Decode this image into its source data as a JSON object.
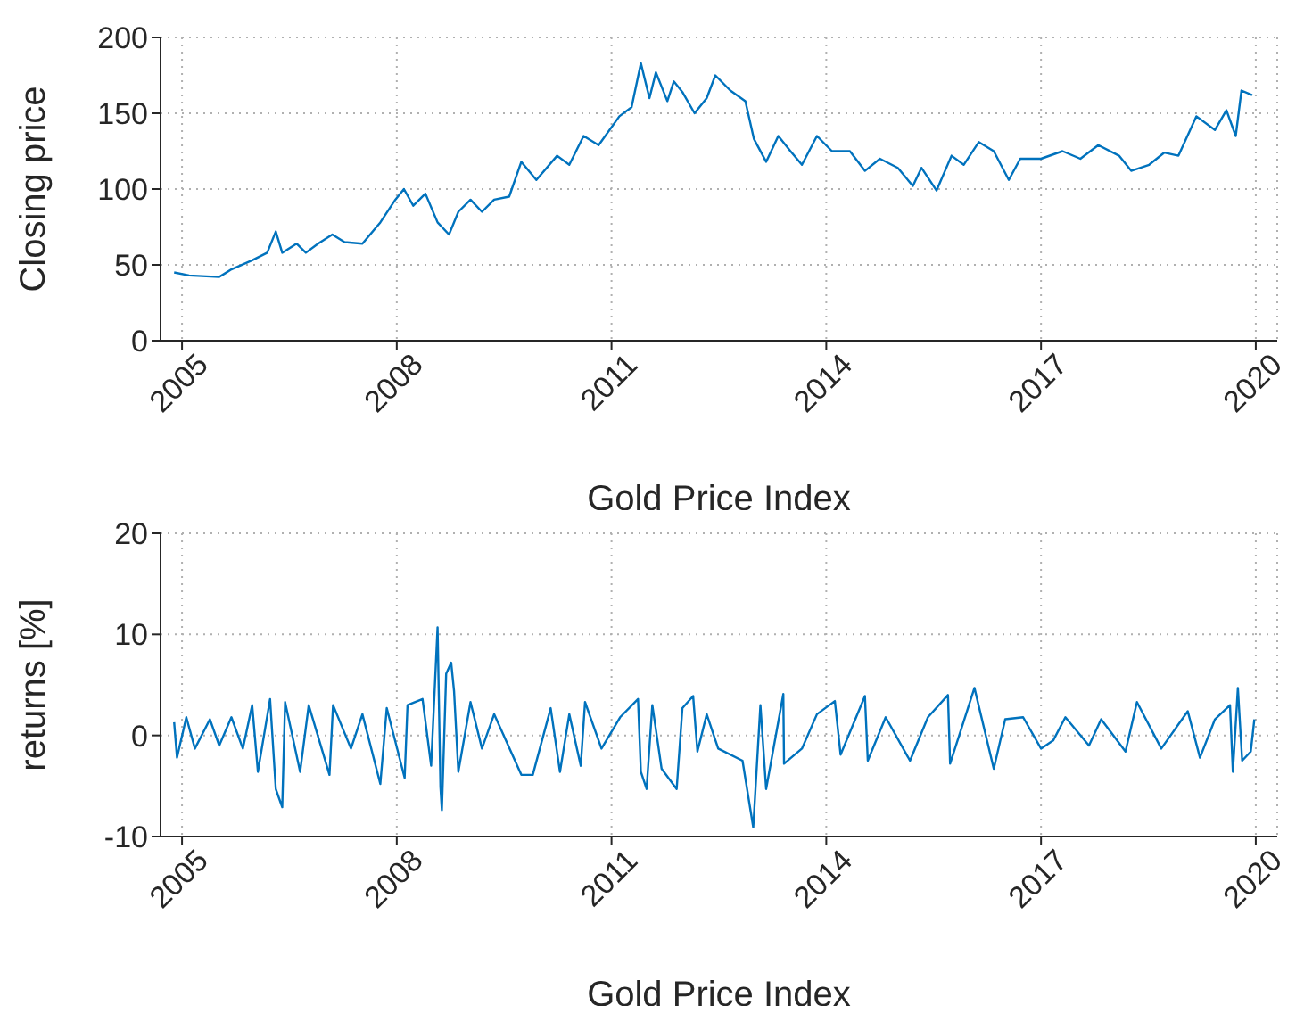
{
  "chart_data": [
    {
      "type": "line",
      "xlabel": "Gold Price Index",
      "ylabel": "Closing price",
      "xlim": [
        2004.7,
        2020.3
      ],
      "xticks": [
        2005,
        2008,
        2011,
        2014,
        2017,
        2020
      ],
      "ylim": [
        0,
        200
      ],
      "yticks": [
        0,
        50,
        100,
        150,
        200
      ],
      "grid": true,
      "marker": "none",
      "line_style": "solid",
      "x": [
        2004.89,
        2005.1,
        2005.52,
        2005.69,
        2005.98,
        2006.19,
        2006.31,
        2006.4,
        2006.6,
        2006.73,
        2006.9,
        2007.1,
        2007.27,
        2007.52,
        2007.77,
        2007.98,
        2008.1,
        2008.23,
        2008.4,
        2008.57,
        2008.73,
        2008.86,
        2009.03,
        2009.19,
        2009.36,
        2009.57,
        2009.74,
        2009.95,
        2010.24,
        2010.41,
        2010.61,
        2010.82,
        2011.11,
        2011.28,
        2011.41,
        2011.53,
        2011.62,
        2011.78,
        2011.87,
        2011.99,
        2012.16,
        2012.33,
        2012.45,
        2012.66,
        2012.87,
        2012.99,
        2013.16,
        2013.33,
        2013.5,
        2013.66,
        2013.87,
        2014.08,
        2014.33,
        2014.54,
        2014.75,
        2015.0,
        2015.21,
        2015.33,
        2015.54,
        2015.75,
        2015.92,
        2016.13,
        2016.34,
        2016.55,
        2016.71,
        2017.0,
        2017.3,
        2017.55,
        2017.8,
        2018.09,
        2018.26,
        2018.51,
        2018.72,
        2018.92,
        2019.17,
        2019.43,
        2019.59,
        2019.72,
        2019.8,
        2019.95
      ],
      "series": [
        {
          "color": "#0072bd",
          "values": [
            45,
            43,
            42,
            47,
            53,
            58,
            72,
            58,
            64,
            58,
            64,
            70,
            65,
            64,
            78,
            93,
            100,
            89,
            97,
            78,
            70,
            85,
            93,
            85,
            93,
            95,
            118,
            106,
            122,
            116,
            135,
            129,
            148,
            154,
            183,
            160,
            177,
            158,
            171,
            164,
            150,
            160,
            175,
            165,
            158,
            133,
            118,
            135,
            125,
            116,
            135,
            125,
            125,
            112,
            120,
            114,
            102,
            114,
            99,
            122,
            116,
            131,
            125,
            106,
            120,
            120,
            125,
            120,
            129,
            122,
            112,
            116,
            124,
            122,
            148,
            139,
            152,
            135,
            165,
            162
          ]
        }
      ]
    },
    {
      "type": "line",
      "xlabel": "Gold Price Index",
      "ylabel": "returns [%]",
      "xlim": [
        2004.7,
        2020.3
      ],
      "xticks": [
        2005,
        2008,
        2011,
        2014,
        2017,
        2020
      ],
      "ylim": [
        -10,
        20
      ],
      "yticks": [
        -10,
        0,
        10,
        20
      ],
      "grid": true,
      "marker": "none",
      "line_style": "solid",
      "x": [
        2004.89,
        2004.93,
        2005.06,
        2005.18,
        2005.39,
        2005.52,
        2005.69,
        2005.85,
        2005.98,
        2006.06,
        2006.23,
        2006.31,
        2006.4,
        2006.44,
        2006.65,
        2006.77,
        2007.06,
        2007.11,
        2007.36,
        2007.52,
        2007.77,
        2007.86,
        2008.11,
        2008.15,
        2008.36,
        2008.48,
        2008.57,
        2008.61,
        2008.63,
        2008.69,
        2008.76,
        2008.8,
        2008.86,
        2009.03,
        2009.19,
        2009.36,
        2009.74,
        2009.9,
        2010.15,
        2010.28,
        2010.41,
        2010.57,
        2010.63,
        2010.86,
        2011.12,
        2011.37,
        2011.41,
        2011.49,
        2011.57,
        2011.7,
        2011.91,
        2011.99,
        2012.14,
        2012.2,
        2012.33,
        2012.49,
        2012.83,
        2012.98,
        2013.08,
        2013.16,
        2013.4,
        2013.41,
        2013.66,
        2013.87,
        2014.12,
        2014.2,
        2014.54,
        2014.58,
        2014.83,
        2015.17,
        2015.42,
        2015.7,
        2015.73,
        2016.07,
        2016.34,
        2016.5,
        2016.75,
        2017.0,
        2017.17,
        2017.34,
        2017.67,
        2017.84,
        2018.18,
        2018.34,
        2018.68,
        2019.05,
        2019.22,
        2019.43,
        2019.64,
        2019.68,
        2019.75,
        2019.81,
        2019.93,
        2019.98
      ],
      "series": [
        {
          "color": "#0072bd",
          "values": [
            1.3,
            -2.2,
            1.8,
            -1.3,
            1.6,
            -1.0,
            1.8,
            -1.3,
            3.0,
            -3.6,
            3.6,
            -5.3,
            -7.1,
            3.3,
            -3.6,
            3.0,
            -3.9,
            3.0,
            -1.3,
            2.1,
            -4.8,
            2.7,
            -4.2,
            3.0,
            3.6,
            -3.0,
            10.7,
            -5.1,
            -7.4,
            6.1,
            7.2,
            4.4,
            -3.6,
            3.3,
            -1.3,
            2.1,
            -3.9,
            -3.9,
            2.7,
            -3.6,
            2.1,
            -3.0,
            3.3,
            -1.3,
            1.8,
            3.6,
            -3.6,
            -5.3,
            3.0,
            -3.3,
            -5.3,
            2.7,
            3.9,
            -1.6,
            2.1,
            -1.3,
            -2.5,
            -9.1,
            3.0,
            -5.3,
            4.1,
            -2.8,
            -1.3,
            2.1,
            3.4,
            -1.9,
            3.9,
            -2.5,
            1.8,
            -2.5,
            1.8,
            4.0,
            -2.8,
            4.7,
            -3.3,
            1.6,
            1.8,
            -1.3,
            -0.5,
            1.8,
            -1.0,
            1.6,
            -1.6,
            3.3,
            -1.3,
            2.4,
            -2.2,
            1.6,
            3.0,
            -3.6,
            4.7,
            -2.5,
            -1.6,
            1.6
          ]
        }
      ]
    }
  ]
}
